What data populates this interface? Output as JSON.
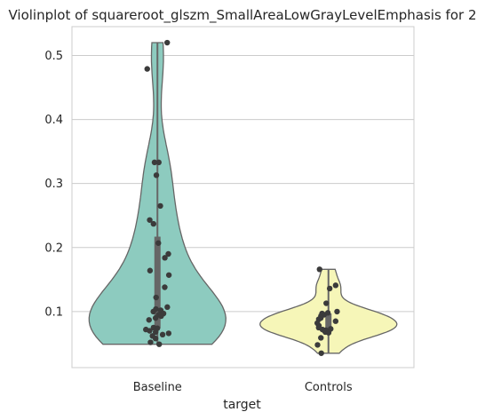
{
  "chart_data": {
    "type": "violin",
    "title": "Violinplot of squareroot_glszm_SmallAreaLowGrayLevelEmphasis for 2",
    "xlabel": "target",
    "ylabel": "",
    "ylim": [
      0.0125,
      0.545
    ],
    "yticks": [
      0.1,
      0.2,
      0.3,
      0.4,
      0.5
    ],
    "ytick_labels": [
      "0.1",
      "0.2",
      "0.3",
      "0.4",
      "0.5"
    ],
    "grid": true,
    "categories": [
      "Baseline",
      "Controls"
    ],
    "series": [
      {
        "name": "Baseline",
        "color": "#8dcbbf",
        "stats": {
          "min": 0.049,
          "q1": 0.074,
          "median": 0.097,
          "q3": 0.217,
          "max": 0.52
        },
        "points": [
          0.52,
          0.479,
          0.333,
          0.333,
          0.313,
          0.265,
          0.243,
          0.237,
          0.207,
          0.19,
          0.184,
          0.164,
          0.157,
          0.138,
          0.122,
          0.107,
          0.104,
          0.102,
          0.1,
          0.097,
          0.095,
          0.093,
          0.09,
          0.087,
          0.075,
          0.074,
          0.072,
          0.07,
          0.068,
          0.066,
          0.064,
          0.062,
          0.058,
          0.052,
          0.049
        ]
      },
      {
        "name": "Controls",
        "color": "#f6f6b8",
        "stats": {
          "min": 0.035,
          "q1": 0.068,
          "median": 0.08,
          "q3": 0.097,
          "max": 0.166
        },
        "points": [
          0.166,
          0.141,
          0.136,
          0.113,
          0.1,
          0.098,
          0.097,
          0.095,
          0.093,
          0.09,
          0.088,
          0.085,
          0.082,
          0.078,
          0.075,
          0.073,
          0.072,
          0.071,
          0.07,
          0.068,
          0.067,
          0.059,
          0.048,
          0.035
        ]
      }
    ]
  }
}
